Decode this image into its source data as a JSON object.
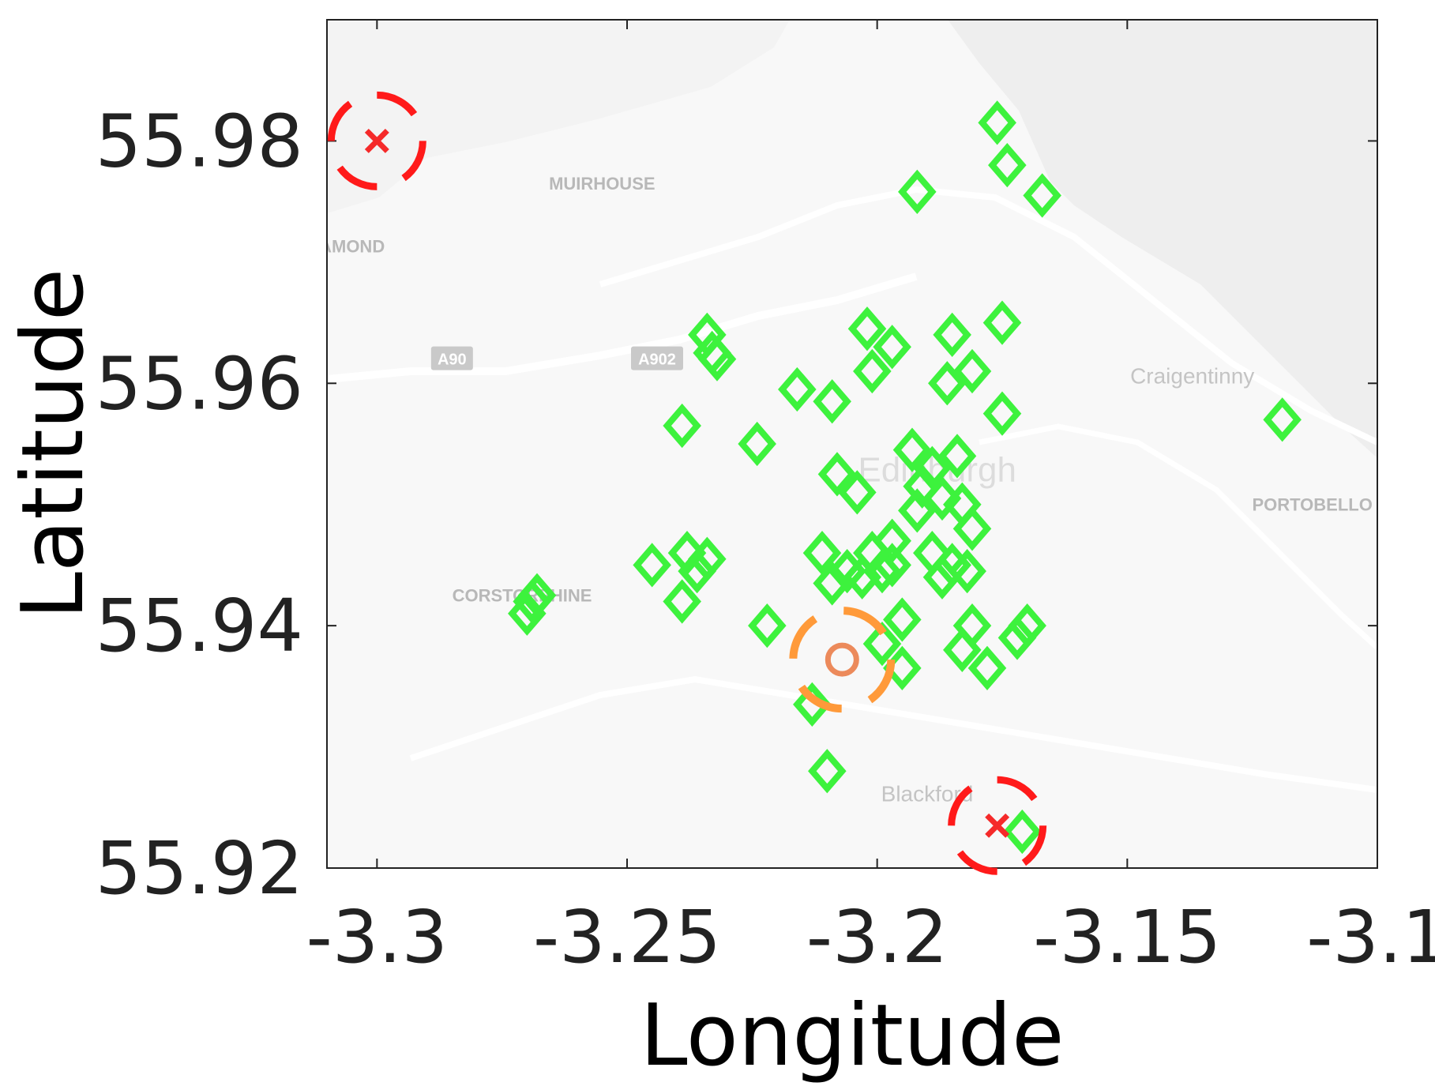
{
  "chart_data": {
    "type": "scatter",
    "xlabel": "Longitude",
    "ylabel": "Latitude",
    "xlim": [
      -3.31,
      -3.1
    ],
    "ylim": [
      55.92,
      55.99
    ],
    "xticks": [
      -3.3,
      -3.25,
      -3.2,
      -3.15,
      -3.1
    ],
    "xtick_labels": [
      "-3.3",
      "-3.25",
      "-3.2",
      "-3.15",
      "-3.1"
    ],
    "yticks": [
      55.92,
      55.94,
      55.96,
      55.98
    ],
    "ytick_labels": [
      "55.92",
      "55.94",
      "55.96",
      "55.98"
    ],
    "grid": false,
    "background": "street map of Edinburgh",
    "map_labels": [
      {
        "text": "MUIRHOUSE",
        "lon": -3.255,
        "lat": 55.976,
        "style": "caps"
      },
      {
        "text": "AMOND",
        "lon": -3.305,
        "lat": 55.9708,
        "style": "caps"
      },
      {
        "text": "Craigentinny",
        "lon": -3.137,
        "lat": 55.96,
        "style": "plain"
      },
      {
        "text": "PORTOBELLO",
        "lon": -3.113,
        "lat": 55.9495,
        "style": "caps"
      },
      {
        "text": "CORSTORPHINE",
        "lon": -3.271,
        "lat": 55.942,
        "style": "caps"
      },
      {
        "text": "Edinburgh",
        "lon": -3.188,
        "lat": 55.9519,
        "style": "big"
      },
      {
        "text": "Blackford",
        "lon": -3.19,
        "lat": 55.9255,
        "style": "plain"
      }
    ],
    "road_badges": [
      {
        "text": "A90",
        "lon": -3.285,
        "lat": 55.962
      },
      {
        "text": "A902",
        "lon": -3.244,
        "lat": 55.962
      }
    ],
    "series": [
      {
        "marker": "diamond",
        "color": "#3df23d",
        "points": [
          [
            -3.176,
            55.9815
          ],
          [
            -3.174,
            55.978
          ],
          [
            -3.167,
            55.9755
          ],
          [
            -3.192,
            55.9758
          ],
          [
            -3.175,
            55.965
          ],
          [
            -3.185,
            55.964
          ],
          [
            -3.181,
            55.961
          ],
          [
            -3.186,
            55.96
          ],
          [
            -3.175,
            55.9575
          ],
          [
            -3.202,
            55.9645
          ],
          [
            -3.197,
            55.963
          ],
          [
            -3.201,
            55.961
          ],
          [
            -3.234,
            55.964
          ],
          [
            -3.233,
            55.9625
          ],
          [
            -3.232,
            55.962
          ],
          [
            -3.239,
            55.9565
          ],
          [
            -3.224,
            55.955
          ],
          [
            -3.216,
            55.9595
          ],
          [
            -3.209,
            55.9585
          ],
          [
            -3.193,
            55.9545
          ],
          [
            -3.189,
            55.953
          ],
          [
            -3.184,
            55.954
          ],
          [
            -3.208,
            55.9525
          ],
          [
            -3.204,
            55.951
          ],
          [
            -3.191,
            55.9515
          ],
          [
            -3.187,
            55.9505
          ],
          [
            -3.183,
            55.95
          ],
          [
            -3.192,
            55.9495
          ],
          [
            -3.181,
            55.948
          ],
          [
            -3.197,
            55.947
          ],
          [
            -3.201,
            55.946
          ],
          [
            -3.211,
            55.946
          ],
          [
            -3.189,
            55.946
          ],
          [
            -3.185,
            55.945
          ],
          [
            -3.182,
            55.9445
          ],
          [
            -3.187,
            55.944
          ],
          [
            -3.197,
            55.945
          ],
          [
            -3.206,
            55.9445
          ],
          [
            -3.203,
            55.944
          ],
          [
            -3.199,
            55.9445
          ],
          [
            -3.209,
            55.9435
          ],
          [
            -3.245,
            55.945
          ],
          [
            -3.238,
            55.946
          ],
          [
            -3.234,
            55.9455
          ],
          [
            -3.236,
            55.9445
          ],
          [
            -3.239,
            55.942
          ],
          [
            -3.269,
            55.942
          ],
          [
            -3.27,
            55.941
          ],
          [
            -3.268,
            55.9425
          ],
          [
            -3.222,
            55.94
          ],
          [
            -3.195,
            55.9405
          ],
          [
            -3.181,
            55.94
          ],
          [
            -3.199,
            55.9385
          ],
          [
            -3.195,
            55.9365
          ],
          [
            -3.183,
            55.938
          ],
          [
            -3.178,
            55.9365
          ],
          [
            -3.172,
            55.939
          ],
          [
            -3.17,
            55.94
          ],
          [
            -3.213,
            55.9335
          ],
          [
            -3.21,
            55.928
          ],
          [
            -3.171,
            55.923
          ],
          [
            -3.119,
            55.957
          ]
        ]
      },
      {
        "marker": "x",
        "ring": "dashed",
        "color": "#f52a2a",
        "ring_color": "#ff1a1a",
        "points": [
          [
            -3.3,
            55.98
          ],
          [
            -3.176,
            55.9235
          ]
        ]
      },
      {
        "marker": "circle",
        "ring": "dashed",
        "color": "#ec8a5b",
        "ring_color": "#ff9a3a",
        "points": [
          [
            -3.207,
            55.9372
          ]
        ]
      }
    ]
  }
}
